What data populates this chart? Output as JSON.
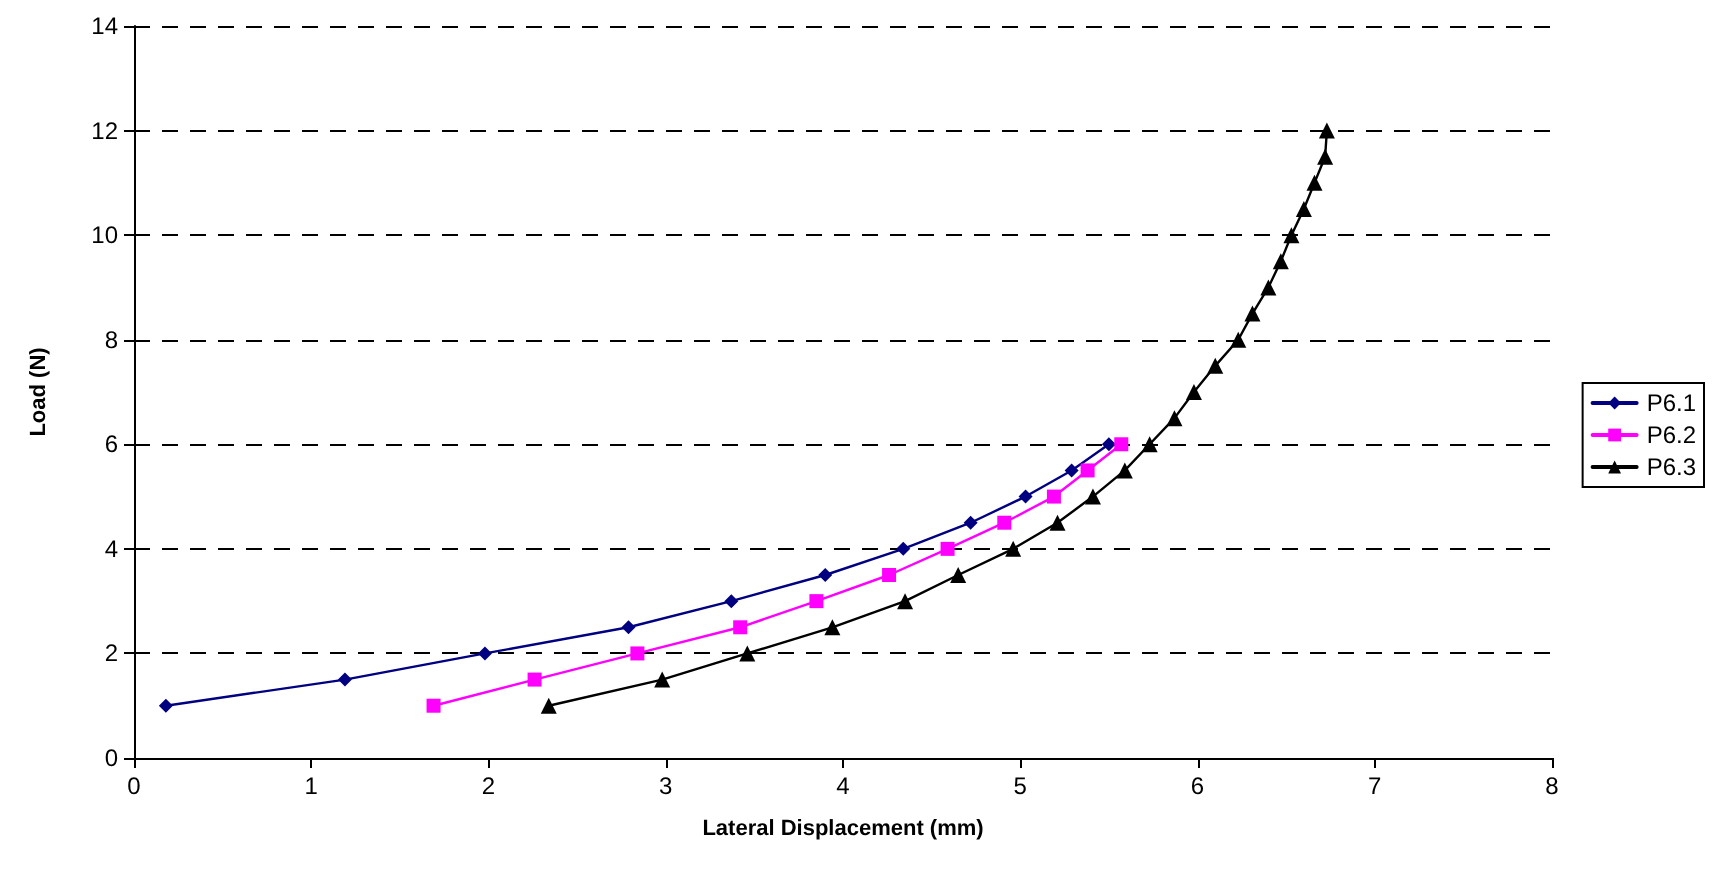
{
  "chart_data": {
    "type": "line",
    "xlabel": "Lateral Displacement (mm)",
    "ylabel": "Load (N)",
    "xlim": [
      0,
      8
    ],
    "xticks": [
      0,
      1,
      2,
      3,
      4,
      5,
      6,
      7,
      8
    ],
    "ylim": [
      0,
      14
    ],
    "yticks": [
      0,
      2,
      4,
      6,
      8,
      10,
      12,
      14
    ],
    "grid": "y",
    "legend": "right",
    "line_style": "solid",
    "series": [
      {
        "name": "P6.1",
        "color": "#000080",
        "marker": "diamond",
        "x": [
          0.18,
          1.19,
          1.98,
          2.79,
          3.37,
          3.9,
          4.34,
          4.72,
          5.03,
          5.29,
          5.5
        ],
        "values": [
          1,
          1.5,
          2,
          2.5,
          3,
          3.5,
          4,
          4.5,
          5,
          5.5,
          6
        ]
      },
      {
        "name": "P6.2",
        "color": "#ff00ff",
        "marker": "square",
        "x": [
          1.69,
          2.26,
          2.84,
          3.42,
          3.85,
          4.26,
          4.59,
          4.91,
          5.19,
          5.38,
          5.57
        ],
        "values": [
          1,
          1.5,
          2,
          2.5,
          3,
          3.5,
          4,
          4.5,
          5,
          5.5,
          6
        ]
      },
      {
        "name": "P6.3",
        "color": "#000000",
        "marker": "triangle",
        "x": [
          2.34,
          2.98,
          3.46,
          3.94,
          4.35,
          4.65,
          4.96,
          5.21,
          5.41,
          5.59,
          5.73,
          5.87,
          5.98,
          6.1,
          6.23,
          6.31,
          6.4,
          6.47,
          6.53,
          6.6,
          6.66,
          6.72,
          6.73
        ],
        "values": [
          1,
          1.5,
          2,
          2.5,
          3,
          3.5,
          4,
          4.5,
          5,
          5.5,
          6,
          6.5,
          7,
          7.5,
          8,
          8.5,
          9,
          9.5,
          10,
          10.5,
          11,
          11.5,
          12
        ]
      }
    ]
  }
}
